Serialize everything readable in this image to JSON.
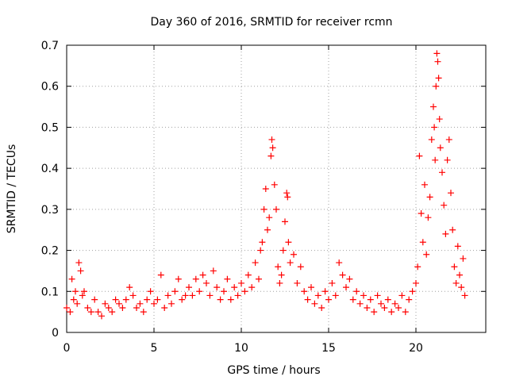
{
  "chart_data": {
    "type": "scatter",
    "title": "Day 360 of 2016, SRMTID for receiver rcmn",
    "xlabel": "GPS time / hours",
    "ylabel": "SRMTID / TECUs",
    "xlim": [
      0,
      24
    ],
    "ylim": [
      0,
      0.7
    ],
    "xticks": [
      0,
      5,
      10,
      15,
      20
    ],
    "yticks": [
      0,
      0.1,
      0.2,
      0.3,
      0.4,
      0.5,
      0.6,
      0.7
    ],
    "grid": true,
    "marker": "plus",
    "series": [
      {
        "name": "SRMTID",
        "color": "#ff0000",
        "points": [
          [
            0.0,
            0.06
          ],
          [
            0.2,
            0.05
          ],
          [
            0.3,
            0.13
          ],
          [
            0.4,
            0.08
          ],
          [
            0.5,
            0.1
          ],
          [
            0.6,
            0.07
          ],
          [
            0.7,
            0.17
          ],
          [
            0.8,
            0.15
          ],
          [
            0.9,
            0.09
          ],
          [
            1.0,
            0.1
          ],
          [
            1.2,
            0.06
          ],
          [
            1.4,
            0.05
          ],
          [
            1.6,
            0.08
          ],
          [
            1.8,
            0.05
          ],
          [
            2.0,
            0.04
          ],
          [
            2.2,
            0.07
          ],
          [
            2.4,
            0.06
          ],
          [
            2.6,
            0.05
          ],
          [
            2.8,
            0.08
          ],
          [
            3.0,
            0.07
          ],
          [
            3.2,
            0.06
          ],
          [
            3.4,
            0.08
          ],
          [
            3.6,
            0.11
          ],
          [
            3.8,
            0.09
          ],
          [
            4.0,
            0.06
          ],
          [
            4.2,
            0.07
          ],
          [
            4.4,
            0.05
          ],
          [
            4.6,
            0.08
          ],
          [
            4.8,
            0.1
          ],
          [
            5.0,
            0.07
          ],
          [
            5.2,
            0.08
          ],
          [
            5.4,
            0.14
          ],
          [
            5.6,
            0.06
          ],
          [
            5.8,
            0.09
          ],
          [
            6.0,
            0.07
          ],
          [
            6.2,
            0.1
          ],
          [
            6.4,
            0.13
          ],
          [
            6.6,
            0.08
          ],
          [
            6.8,
            0.09
          ],
          [
            7.0,
            0.11
          ],
          [
            7.2,
            0.09
          ],
          [
            7.4,
            0.13
          ],
          [
            7.6,
            0.1
          ],
          [
            7.8,
            0.14
          ],
          [
            8.0,
            0.12
          ],
          [
            8.2,
            0.09
          ],
          [
            8.4,
            0.15
          ],
          [
            8.6,
            0.11
          ],
          [
            8.8,
            0.08
          ],
          [
            9.0,
            0.1
          ],
          [
            9.2,
            0.13
          ],
          [
            9.4,
            0.08
          ],
          [
            9.6,
            0.11
          ],
          [
            9.8,
            0.09
          ],
          [
            10.0,
            0.12
          ],
          [
            10.2,
            0.1
          ],
          [
            10.4,
            0.14
          ],
          [
            10.6,
            0.11
          ],
          [
            10.8,
            0.17
          ],
          [
            11.0,
            0.13
          ],
          [
            11.1,
            0.2
          ],
          [
            11.2,
            0.22
          ],
          [
            11.3,
            0.3
          ],
          [
            11.4,
            0.35
          ],
          [
            11.5,
            0.25
          ],
          [
            11.6,
            0.28
          ],
          [
            11.7,
            0.43
          ],
          [
            11.75,
            0.47
          ],
          [
            11.8,
            0.45
          ],
          [
            11.9,
            0.36
          ],
          [
            12.0,
            0.3
          ],
          [
            12.1,
            0.16
          ],
          [
            12.2,
            0.12
          ],
          [
            12.3,
            0.14
          ],
          [
            12.4,
            0.2
          ],
          [
            12.5,
            0.27
          ],
          [
            12.6,
            0.34
          ],
          [
            12.65,
            0.33
          ],
          [
            12.7,
            0.22
          ],
          [
            12.8,
            0.17
          ],
          [
            13.0,
            0.19
          ],
          [
            13.2,
            0.12
          ],
          [
            13.4,
            0.16
          ],
          [
            13.6,
            0.1
          ],
          [
            13.8,
            0.08
          ],
          [
            14.0,
            0.11
          ],
          [
            14.2,
            0.07
          ],
          [
            14.4,
            0.09
          ],
          [
            14.6,
            0.06
          ],
          [
            14.8,
            0.1
          ],
          [
            15.0,
            0.08
          ],
          [
            15.2,
            0.12
          ],
          [
            15.4,
            0.09
          ],
          [
            15.6,
            0.17
          ],
          [
            15.8,
            0.14
          ],
          [
            16.0,
            0.11
          ],
          [
            16.2,
            0.13
          ],
          [
            16.4,
            0.08
          ],
          [
            16.6,
            0.1
          ],
          [
            16.8,
            0.07
          ],
          [
            17.0,
            0.09
          ],
          [
            17.2,
            0.06
          ],
          [
            17.4,
            0.08
          ],
          [
            17.6,
            0.05
          ],
          [
            17.8,
            0.09
          ],
          [
            18.0,
            0.07
          ],
          [
            18.2,
            0.06
          ],
          [
            18.4,
            0.08
          ],
          [
            18.6,
            0.05
          ],
          [
            18.8,
            0.07
          ],
          [
            19.0,
            0.06
          ],
          [
            19.2,
            0.09
          ],
          [
            19.4,
            0.05
          ],
          [
            19.6,
            0.08
          ],
          [
            19.8,
            0.1
          ],
          [
            20.0,
            0.12
          ],
          [
            20.1,
            0.16
          ],
          [
            20.2,
            0.43
          ],
          [
            20.3,
            0.29
          ],
          [
            20.4,
            0.22
          ],
          [
            20.5,
            0.36
          ],
          [
            20.6,
            0.19
          ],
          [
            20.7,
            0.28
          ],
          [
            20.8,
            0.33
          ],
          [
            20.9,
            0.47
          ],
          [
            21.0,
            0.55
          ],
          [
            21.05,
            0.5
          ],
          [
            21.1,
            0.42
          ],
          [
            21.15,
            0.6
          ],
          [
            21.2,
            0.68
          ],
          [
            21.25,
            0.66
          ],
          [
            21.3,
            0.62
          ],
          [
            21.35,
            0.52
          ],
          [
            21.4,
            0.45
          ],
          [
            21.5,
            0.39
          ],
          [
            21.6,
            0.31
          ],
          [
            21.7,
            0.24
          ],
          [
            21.8,
            0.42
          ],
          [
            21.9,
            0.47
          ],
          [
            22.0,
            0.34
          ],
          [
            22.1,
            0.25
          ],
          [
            22.2,
            0.16
          ],
          [
            22.3,
            0.12
          ],
          [
            22.4,
            0.21
          ],
          [
            22.5,
            0.14
          ],
          [
            22.6,
            0.11
          ],
          [
            22.7,
            0.18
          ],
          [
            22.8,
            0.09
          ]
        ]
      }
    ]
  }
}
